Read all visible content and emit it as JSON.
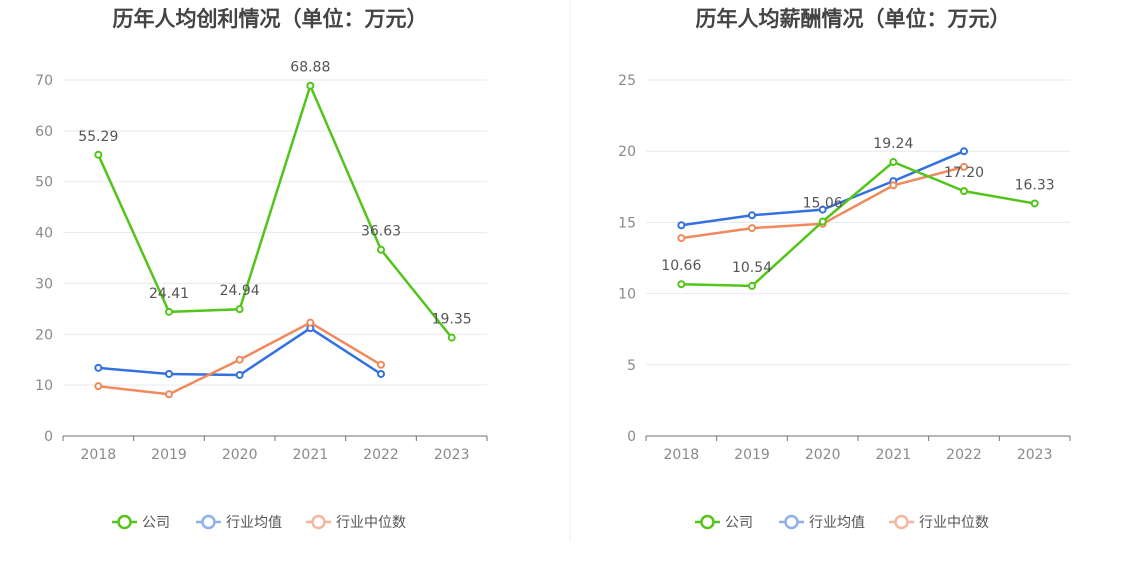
{
  "chart_data": [
    {
      "type": "line",
      "title": "历年人均创利情况（单位：万元）",
      "categories": [
        "2018",
        "2019",
        "2020",
        "2021",
        "2022",
        "2023"
      ],
      "ylim": [
        0,
        70
      ],
      "yticks": [
        "0",
        "10",
        "20",
        "30",
        "40",
        "50",
        "60",
        "70"
      ],
      "grid": true,
      "legend_position": "bottom-center",
      "series": [
        {
          "name": "公司",
          "color": "#52c41a",
          "values": [
            55.29,
            24.41,
            24.94,
            68.88,
            36.63,
            19.35
          ],
          "labels": [
            "55.29",
            "24.41",
            "24.94",
            "68.88",
            "36.63",
            "19.35"
          ]
        },
        {
          "name": "行业均值",
          "color": "#3370e0",
          "values": [
            13.4,
            12.2,
            12.0,
            21.2,
            12.2,
            null
          ]
        },
        {
          "name": "行业中位数",
          "color": "#f08a5d",
          "values": [
            9.8,
            8.2,
            15.0,
            22.3,
            14.0,
            null
          ]
        }
      ]
    },
    {
      "type": "line",
      "title": "历年人均薪酬情况（单位：万元）",
      "categories": [
        "2018",
        "2019",
        "2020",
        "2021",
        "2022",
        "2023"
      ],
      "ylim": [
        0,
        25
      ],
      "yticks": [
        "0",
        "5",
        "10",
        "15",
        "20",
        "25"
      ],
      "grid": true,
      "legend_position": "bottom-center",
      "series": [
        {
          "name": "公司",
          "color": "#52c41a",
          "values": [
            10.66,
            10.54,
            15.06,
            19.24,
            17.2,
            16.33
          ],
          "labels": [
            "10.66",
            "10.54",
            "15.06",
            "19.24",
            "17.20",
            "16.33"
          ]
        },
        {
          "name": "行业均值",
          "color": "#3370e0",
          "values": [
            14.8,
            15.5,
            15.9,
            17.9,
            20.0,
            null
          ]
        },
        {
          "name": "行业中位数",
          "color": "#f08a5d",
          "values": [
            13.9,
            14.6,
            14.9,
            17.6,
            18.9,
            null
          ]
        }
      ]
    }
  ]
}
